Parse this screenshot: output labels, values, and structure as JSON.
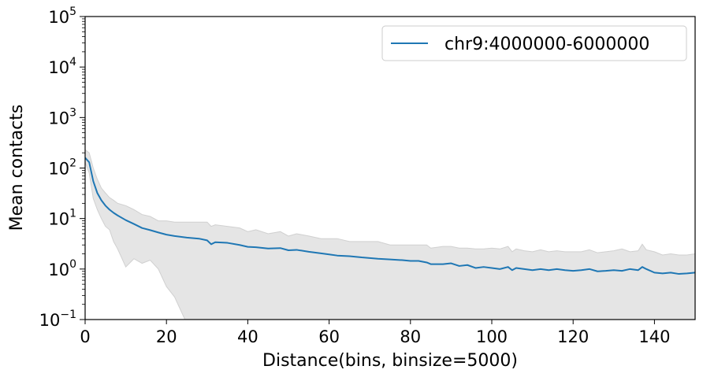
{
  "chart_data": {
    "type": "line",
    "xlabel": "Distance(bins, binsize=5000)",
    "ylabel": "Mean contacts",
    "xlim": [
      0,
      150
    ],
    "ylim": [
      0.1,
      100000
    ],
    "yscale": "log",
    "x_ticks": [
      0,
      20,
      40,
      60,
      80,
      100,
      120,
      140
    ],
    "y_ticks": [
      {
        "base": "10",
        "exp": "−1",
        "value": 0.1
      },
      {
        "base": "10",
        "exp": "0",
        "value": 1
      },
      {
        "base": "10",
        "exp": "1",
        "value": 10
      },
      {
        "base": "10",
        "exp": "2",
        "value": 100
      },
      {
        "base": "10",
        "exp": "3",
        "value": 1000
      },
      {
        "base": "10",
        "exp": "4",
        "value": 10000
      },
      {
        "base": "10",
        "exp": "5",
        "value": 100000
      }
    ],
    "legend_position": "top-right",
    "grid": false,
    "series": [
      {
        "name": "chr9:4000000-6000000",
        "color": "#1f77b4",
        "x": [
          0,
          1,
          2,
          3,
          4,
          5,
          6,
          7,
          8,
          10,
          12,
          14,
          16,
          18,
          20,
          22,
          25,
          28,
          30,
          31,
          32,
          35,
          38,
          40,
          42,
          45,
          48,
          50,
          52,
          55,
          58,
          60,
          62,
          65,
          68,
          70,
          72,
          75,
          78,
          80,
          82,
          84,
          85,
          88,
          90,
          92,
          94,
          96,
          98,
          100,
          102,
          104,
          105,
          106,
          108,
          110,
          112,
          114,
          116,
          118,
          120,
          122,
          124,
          126,
          128,
          130,
          132,
          134,
          136,
          137,
          138,
          140,
          142,
          144,
          146,
          148,
          150
        ],
        "values": [
          160,
          130,
          55,
          32,
          23,
          18,
          15,
          13,
          11.5,
          9.3,
          7.8,
          6.5,
          5.9,
          5.3,
          4.8,
          4.5,
          4.2,
          4.0,
          3.7,
          3.1,
          3.4,
          3.3,
          3.0,
          2.75,
          2.7,
          2.55,
          2.6,
          2.35,
          2.4,
          2.2,
          2.05,
          1.95,
          1.85,
          1.8,
          1.7,
          1.65,
          1.6,
          1.55,
          1.5,
          1.45,
          1.45,
          1.35,
          1.25,
          1.25,
          1.3,
          1.15,
          1.2,
          1.05,
          1.1,
          1.05,
          1.0,
          1.1,
          0.95,
          1.05,
          1.0,
          0.95,
          1.0,
          0.95,
          1.0,
          0.95,
          0.92,
          0.95,
          1.0,
          0.9,
          0.92,
          0.95,
          0.92,
          1.0,
          0.95,
          1.1,
          1.0,
          0.85,
          0.82,
          0.85,
          0.8,
          0.82,
          0.85
        ],
        "band_upper": [
          230,
          200,
          100,
          60,
          40,
          32,
          26,
          23,
          20,
          18,
          15,
          12,
          11,
          9,
          9,
          8.5,
          8.5,
          8.5,
          8.5,
          7,
          7.5,
          7,
          6.5,
          5.5,
          6,
          5,
          5.5,
          4.5,
          5,
          4.5,
          4,
          4,
          4,
          3.5,
          3.5,
          3.5,
          3.5,
          3,
          3,
          3,
          3,
          3,
          2.6,
          2.8,
          2.8,
          2.6,
          2.6,
          2.5,
          2.5,
          2.6,
          2.5,
          2.8,
          2.2,
          2.5,
          2.3,
          2.2,
          2.4,
          2.2,
          2.3,
          2.2,
          2.2,
          2.2,
          2.4,
          2.1,
          2.2,
          2.3,
          2.5,
          2.2,
          2.3,
          3.1,
          2.4,
          2.2,
          1.9,
          2.0,
          1.9,
          1.9,
          2.0
        ],
        "band_lower": [
          130,
          80,
          25,
          15,
          10,
          7,
          6,
          3.5,
          2.5,
          1.1,
          1.6,
          1.3,
          1.5,
          1.0,
          0.45,
          0.28,
          0.1,
          0.1,
          0.1,
          0.1,
          0.1,
          0.1,
          0.1,
          0.1,
          0.1,
          0.1,
          0.1,
          0.1,
          0.1,
          0.1,
          0.1,
          0.1,
          0.1,
          0.1,
          0.1,
          0.1,
          0.1,
          0.1,
          0.1,
          0.1,
          0.1,
          0.1,
          0.1,
          0.1,
          0.1,
          0.1,
          0.1,
          0.1,
          0.1,
          0.1,
          0.1,
          0.1,
          0.1,
          0.1,
          0.1,
          0.1,
          0.1,
          0.1,
          0.1,
          0.1,
          0.1,
          0.1,
          0.1,
          0.1,
          0.1,
          0.1,
          0.1,
          0.1,
          0.1,
          0.1,
          0.1,
          0.1,
          0.1,
          0.1,
          0.1,
          0.1,
          0.1
        ]
      }
    ]
  },
  "colors": {
    "line": "#1f77b4",
    "band": "#e5e5e5",
    "band_edge": "#d0d0d0"
  }
}
